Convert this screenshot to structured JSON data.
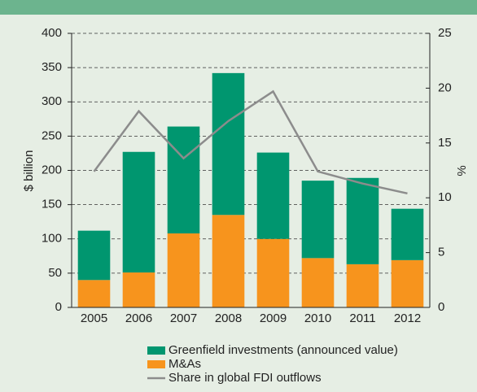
{
  "chart_data": {
    "type": "bar",
    "categories": [
      "2005",
      "2006",
      "2007",
      "2008",
      "2009",
      "2010",
      "2011",
      "2012"
    ],
    "series": [
      {
        "name": "Greenfield investments (announced value)",
        "color": "#00966f",
        "values": [
          72,
          176,
          156,
          207,
          126,
          113,
          126,
          75
        ]
      },
      {
        "name": "M&As",
        "color": "#f7941d",
        "values": [
          40,
          51,
          108,
          135,
          100,
          72,
          63,
          69
        ]
      },
      {
        "name": "Share in global FDI outflows",
        "type": "line",
        "axis": "y2",
        "color": "#8c8c8c",
        "values": [
          12.4,
          17.9,
          13.6,
          17.0,
          19.7,
          12.4,
          11.3,
          10.4
        ]
      }
    ],
    "ylabel": "$ billion",
    "y2label": "%",
    "ylim": [
      0,
      400
    ],
    "yticks": [
      0,
      50,
      100,
      150,
      200,
      250,
      300,
      350,
      400
    ],
    "y2lim": [
      0,
      25
    ],
    "y2ticks": [
      0,
      5,
      10,
      15,
      20,
      25
    ],
    "grid": true,
    "stacked": true,
    "legend": "bottom"
  }
}
